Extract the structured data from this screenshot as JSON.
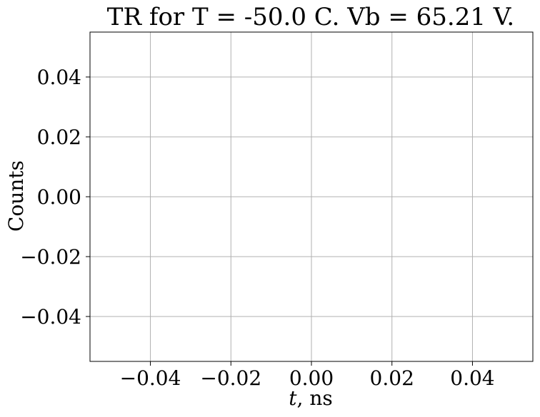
{
  "chart_data": {
    "type": "line",
    "title": "TR for T = -50.0 C. Vb = 65.21 V.",
    "xlabel_var": "t",
    "xlabel_unit": ", ns",
    "ylabel": "Counts",
    "xlim": [
      -0.055,
      0.055
    ],
    "ylim": [
      -0.055,
      0.055
    ],
    "x_ticks": [
      -0.04,
      -0.02,
      0.0,
      0.02,
      0.04
    ],
    "y_ticks": [
      -0.04,
      -0.02,
      0.0,
      0.02,
      0.04
    ],
    "x_tick_labels": [
      "−0.04",
      "−0.02",
      "0.00",
      "0.02",
      "0.04"
    ],
    "y_tick_labels": [
      "−0.04",
      "−0.02",
      "0.00",
      "0.02",
      "0.04"
    ],
    "grid": true,
    "series": [],
    "colors": {
      "grid": "#b0b0b0",
      "axes": "#000000"
    }
  }
}
